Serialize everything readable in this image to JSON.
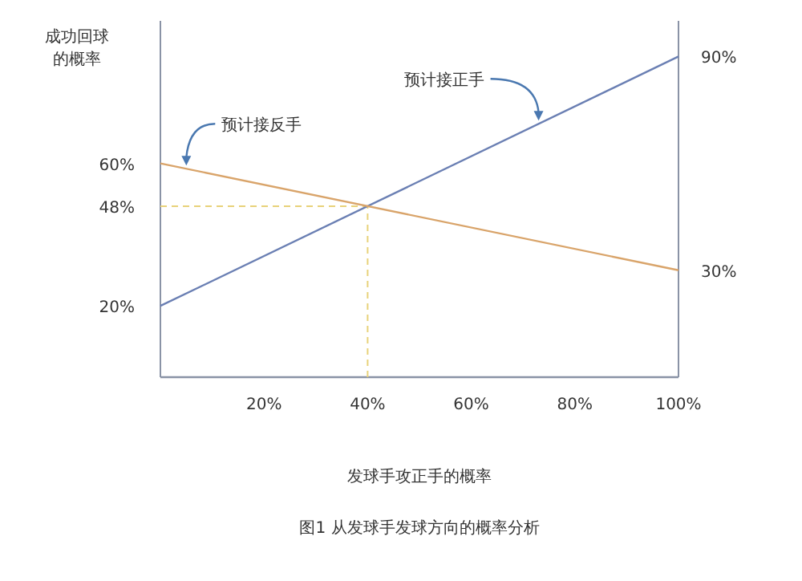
{
  "chart_data": {
    "type": "line",
    "ylabel": "成功回球的概率",
    "xlabel": "发球手攻正手的概率",
    "xlim": [
      0,
      100
    ],
    "ylim": [
      0,
      100
    ],
    "y2lim": [
      0,
      100
    ],
    "xticks": [
      {
        "value": 20,
        "label": "20%"
      },
      {
        "value": 40,
        "label": "40%"
      },
      {
        "value": 60,
        "label": "60%"
      },
      {
        "value": 80,
        "label": "80%"
      },
      {
        "value": 100,
        "label": "100%"
      }
    ],
    "yticks": [
      {
        "value": 20,
        "label": "20%"
      },
      {
        "value": 48,
        "label": "48%"
      },
      {
        "value": 60,
        "label": "60%"
      }
    ],
    "y2ticks": [
      {
        "value": 30,
        "label": "30%"
      },
      {
        "value": 90,
        "label": "90%"
      }
    ],
    "x": [
      0,
      100
    ],
    "series": [
      {
        "color": "#6a7fb3",
        "values": [
          20,
          90
        ]
      },
      {
        "color": "#d9a46a",
        "values": [
          60,
          30
        ]
      }
    ],
    "ref_lines": [
      {
        "axis": "y",
        "value": 48,
        "color": "#e8d27a",
        "line_style": "dashed"
      },
      {
        "axis": "x",
        "value": 40,
        "color": "#e8d27a",
        "line_style": "dashed"
      }
    ],
    "annotations": [
      {
        "text": "预计接反手",
        "x": 5,
        "y": 58.5
      },
      {
        "text": "预计接正手",
        "x": 73,
        "y": 71.1
      },
      "图1 从发球手发球方向的概率分析"
    ],
    "grid": false
  }
}
